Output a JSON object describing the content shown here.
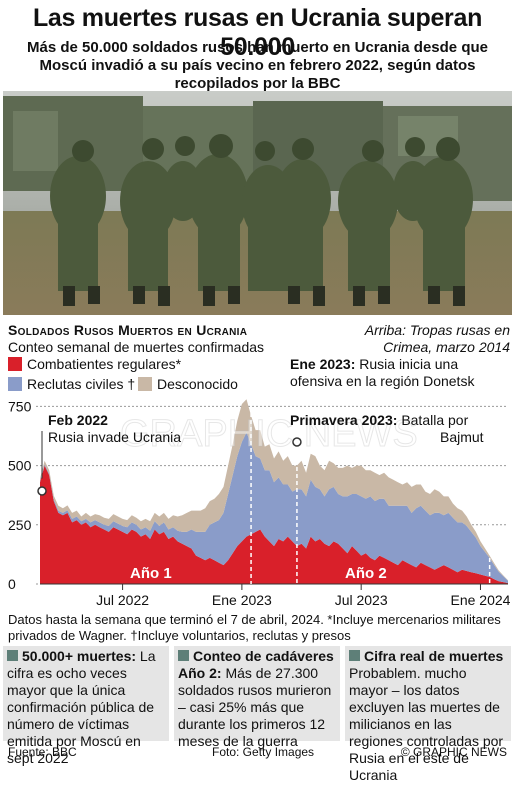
{
  "title": "Las muertes rusas en Ucrania superan 50.000",
  "subtitle": "Más de 50.000 soldados rusos han muerto en Ucrania desde que Moscú invadió a su país vecino en febrero 2022, según datos recopilados por la BBC",
  "photo_caption": "Arriba: Tropas rusas en Crimea, marzo 2014",
  "watermark": "GRAPHIC NEWS",
  "chart_title": "Soldados Rusos Muertos en Ucrania",
  "chart_subtitle": "Conteo semanal de muertes confirmadas",
  "legend": {
    "regular": "Combatientes regulares*",
    "civil": "Reclutas civiles †",
    "unknown": "Desconocido"
  },
  "annotations": {
    "feb2022_bold": "Feb 2022",
    "feb2022_text": "Rusia invade Ucrania",
    "ene2023_bold": "Ene 2023:",
    "ene2023_text1": "Rusia inicia una",
    "ene2023_text2": "ofensiva en la región Donetsk",
    "prim2023_bold": "Primavera 2023:",
    "prim2023_text1": "Batalla por",
    "prim2023_text2": "Bajmut",
    "year1": "Año 1",
    "year2": "Año 2"
  },
  "footnote": "Datos hasta la semana que terminó el 7 de abril, 2024. *Incluye mercenarios militares privados de Wagner. †Incluye voluntarios, reclutas y presos",
  "panels": [
    {
      "heading": "50.000+ muertes:",
      "text": "La cifra es ocho veces mayor que la única confirmación pública de número de víctimas emitida por Moscú en sept 2022"
    },
    {
      "heading": "Conteo de cadáveres",
      "heading2": "Año 2:",
      "text": "Más de 27.300 soldados rusos murieron – casi 25% más que durante los primeros 12 meses de la guerra"
    },
    {
      "heading": "Cifra real de muertes",
      "text": "Probablem. mucho mayor – los datos excluyen las muertes de milicianos en las regiones controladas por Rusia en el este de Ucrania"
    }
  ],
  "source": "Fuente: BBC",
  "photo_credit": "Foto: Getty Images",
  "copyright": "© GRAPHIC NEWS",
  "colors": {
    "regular": "#d9202a",
    "civil": "#8a9cc9",
    "unknown": "#c9b8a6",
    "panel_square": "#5e7f78"
  },
  "chart_data": {
    "type": "area",
    "stacked": true,
    "x_unit": "weeks since 2022-02-24",
    "x_tick_labels": [
      "Jul 2022",
      "Ene 2023",
      "Jul 2023",
      "Ene 2024"
    ],
    "y_ticks": [
      0,
      250,
      500,
      750
    ],
    "ylim": [
      0,
      760
    ],
    "series": [
      {
        "name": "Combatientes regulares*",
        "key": "regular",
        "values": [
          430,
          500,
          460,
          350,
          300,
          290,
          300,
          260,
          270,
          250,
          260,
          240,
          250,
          240,
          230,
          220,
          240,
          230,
          220,
          210,
          230,
          220,
          200,
          210,
          190,
          230,
          210,
          220,
          190,
          200,
          180,
          170,
          160,
          150,
          120,
          110,
          100,
          110,
          100,
          90,
          80,
          100,
          130,
          160,
          180,
          200,
          210,
          220,
          230,
          200,
          180,
          160,
          190,
          180,
          200,
          180,
          160,
          170,
          150,
          200,
          180,
          190,
          170,
          160,
          180,
          170,
          150,
          130,
          160,
          140,
          120,
          130,
          110,
          100,
          120,
          110,
          100,
          90,
          80,
          100,
          90,
          80,
          70,
          90,
          80,
          70,
          60,
          70,
          80,
          70,
          60,
          50,
          60,
          55,
          50,
          45,
          40,
          35,
          30,
          20,
          12,
          8,
          4
        ]
      },
      {
        "name": "Reclutas civiles †",
        "key": "civil",
        "values": [
          5,
          5,
          5,
          8,
          10,
          10,
          12,
          15,
          15,
          15,
          15,
          20,
          20,
          20,
          20,
          25,
          25,
          25,
          25,
          30,
          30,
          30,
          30,
          30,
          35,
          35,
          35,
          40,
          40,
          40,
          45,
          50,
          60,
          80,
          100,
          110,
          120,
          140,
          160,
          180,
          220,
          280,
          330,
          380,
          420,
          440,
          380,
          320,
          300,
          280,
          300,
          270,
          260,
          240,
          220,
          210,
          240,
          230,
          220,
          240,
          230,
          210,
          200,
          240,
          230,
          210,
          220,
          240,
          220,
          240,
          250,
          230,
          260,
          250,
          240,
          250,
          230,
          240,
          250,
          230,
          240,
          220,
          250,
          240,
          230,
          220,
          240,
          230,
          210,
          230,
          220,
          210,
          200,
          190,
          170,
          150,
          120,
          100,
          80,
          60,
          40,
          25,
          10
        ]
      },
      {
        "name": "Desconocido",
        "key": "unknown",
        "values": [
          10,
          15,
          15,
          15,
          20,
          20,
          20,
          25,
          25,
          20,
          25,
          25,
          25,
          30,
          30,
          30,
          30,
          30,
          30,
          30,
          30,
          30,
          35,
          35,
          40,
          35,
          40,
          40,
          45,
          50,
          60,
          70,
          80,
          80,
          90,
          90,
          100,
          100,
          100,
          110,
          110,
          120,
          130,
          150,
          160,
          140,
          120,
          110,
          120,
          100,
          110,
          100,
          110,
          100,
          120,
          110,
          100,
          120,
          100,
          110,
          130,
          100,
          110,
          120,
          100,
          110,
          120,
          130,
          110,
          120,
          130,
          120,
          110,
          120,
          100,
          110,
          120,
          110,
          100,
          90,
          100,
          110,
          100,
          90,
          80,
          90,
          100,
          90,
          80,
          70,
          60,
          60,
          50,
          40,
          30,
          25,
          20,
          15,
          10,
          8,
          5,
          3,
          2
        ]
      }
    ]
  }
}
